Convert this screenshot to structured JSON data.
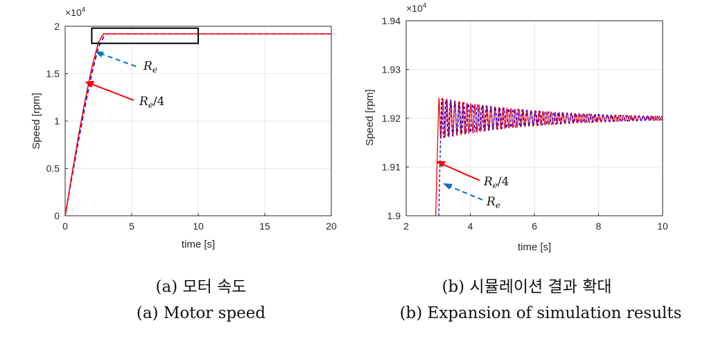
{
  "chart_data": [
    {
      "type": "line",
      "title": "",
      "xlabel": "time [s]",
      "ylabel": "Speed [rpm]",
      "xlim": [
        0,
        20
      ],
      "ylim": [
        0,
        20000
      ],
      "x_ticks": [
        "0",
        "5",
        "10",
        "15",
        "20"
      ],
      "y_ticks": [
        "0",
        "0.5",
        "1",
        "1.5",
        "2"
      ],
      "y_multiplier": "×10",
      "y_multiplier_exp": "4",
      "grid": true,
      "series": [
        {
          "name": "Re/4",
          "color": "#ff0000",
          "style": "solid",
          "x": [
            0,
            0.5,
            1.0,
            1.5,
            2.0,
            2.5,
            2.9,
            3.0,
            20
          ],
          "y": [
            0,
            4300,
            8400,
            12200,
            15600,
            18300,
            19240,
            19200,
            19200
          ]
        },
        {
          "name": "Re",
          "color": "#0000ff",
          "style": "dashed",
          "x": [
            0,
            0.5,
            1.0,
            1.5,
            2.0,
            2.5,
            3.0,
            3.15,
            20
          ],
          "y": [
            0,
            4000,
            7900,
            11600,
            15000,
            17800,
            19150,
            19200,
            19200
          ]
        }
      ],
      "annotations": [
        {
          "base": "R",
          "sub": "e",
          "suffix": "",
          "color": "#0072bd",
          "style": "dashed"
        },
        {
          "base": "R",
          "sub": "e",
          "suffix": "/4",
          "color": "#ff0000",
          "style": "solid"
        }
      ],
      "zoom_box": {
        "x": [
          2,
          10
        ],
        "y": [
          18200,
          19800
        ]
      }
    },
    {
      "type": "line",
      "title": "",
      "xlabel": "time [s]",
      "ylabel": "Speed [rpm]",
      "xlim": [
        2,
        10
      ],
      "ylim": [
        19000,
        19400
      ],
      "x_ticks": [
        "2",
        "4",
        "6",
        "8",
        "10"
      ],
      "y_ticks": [
        "1.9",
        "1.91",
        "1.92",
        "1.93",
        "1.94"
      ],
      "y_multiplier": "×10",
      "y_multiplier_exp": "4",
      "grid": true,
      "series": [
        {
          "name": "Re/4",
          "color": "#ff0000",
          "style": "solid",
          "rise": [
            2.9,
            3.02
          ],
          "osc_start": 3.02,
          "amp0": 42,
          "amp1": 4,
          "period": 0.125,
          "mean": 19200
        },
        {
          "name": "Re",
          "color": "#0000ff",
          "style": "dashed",
          "rise": [
            3.0,
            3.1
          ],
          "osc_start": 3.1,
          "amp0": 40,
          "amp1": 4,
          "period": 0.14,
          "mean": 19200
        }
      ],
      "annotations": [
        {
          "base": "R",
          "sub": "e",
          "suffix": "/4",
          "color": "#ff0000",
          "style": "solid"
        },
        {
          "base": "R",
          "sub": "e",
          "suffix": "",
          "color": "#0072bd",
          "style": "dashed"
        }
      ]
    }
  ],
  "captions": {
    "a_korean": "(a) 모터 속도",
    "b_korean": "(b) 시뮬레이션 결과 확대",
    "a_english": "(a) Motor speed",
    "b_english": "(b) Expansion of simulation results"
  }
}
